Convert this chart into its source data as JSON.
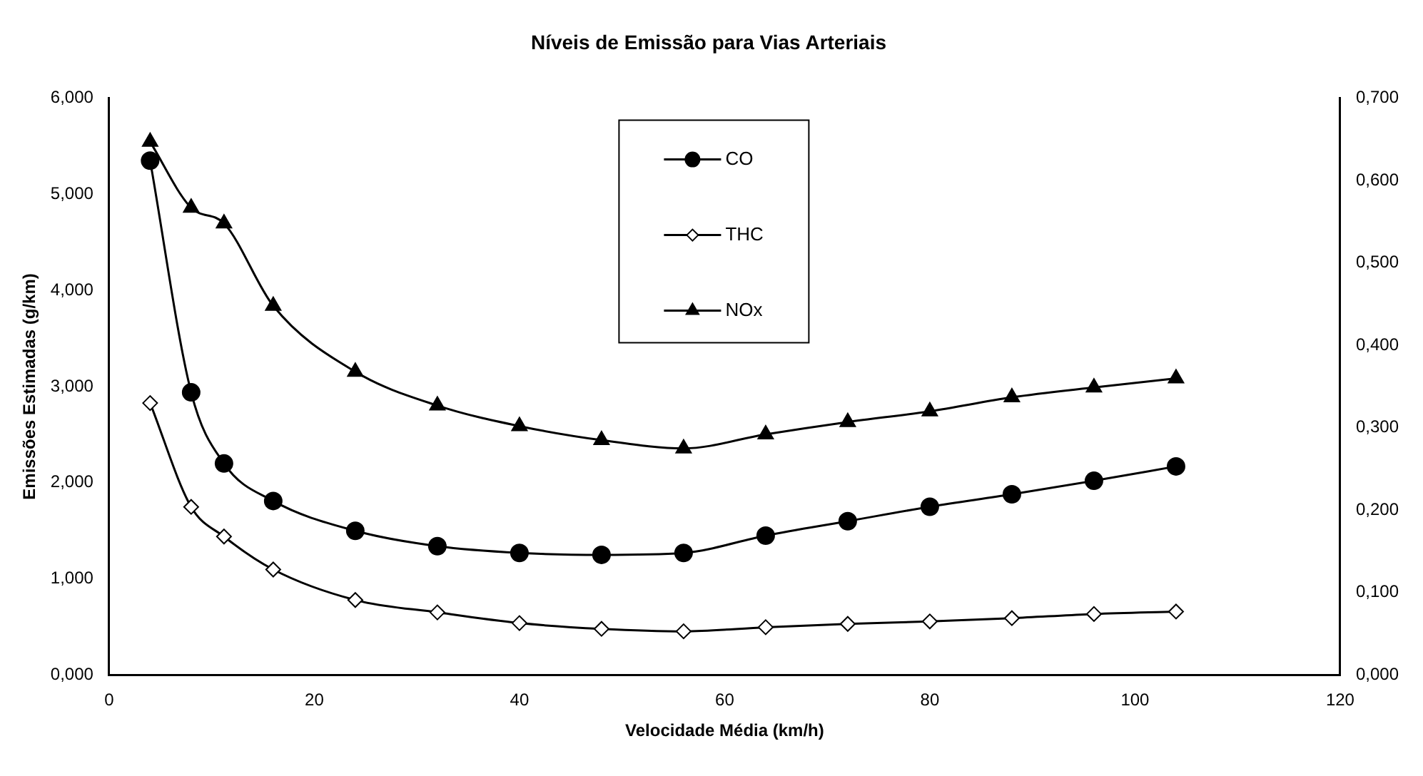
{
  "chart_data": {
    "type": "line",
    "title": "Níveis de Emissão para Vias Arteriais",
    "xlabel": "Velocidade Média (km/h)",
    "ylabel": "Emissões Estimadas (g/km)",
    "x": [
      4,
      8,
      11.2,
      16,
      24,
      32,
      40,
      48,
      56,
      64,
      72,
      80,
      88,
      96,
      104
    ],
    "xlim": [
      0,
      120
    ],
    "xticks": [
      0,
      20,
      40,
      60,
      80,
      100,
      120
    ],
    "ylim": [
      0,
      6
    ],
    "yticks": [
      {
        "value": 0,
        "label": "0,000"
      },
      {
        "value": 1,
        "label": "1,000"
      },
      {
        "value": 2,
        "label": "2,000"
      },
      {
        "value": 3,
        "label": "3,000"
      },
      {
        "value": 4,
        "label": "4,000"
      },
      {
        "value": 5,
        "label": "5,000"
      },
      {
        "value": 6,
        "label": "6,000"
      }
    ],
    "y2lim": [
      0,
      0.7
    ],
    "y2ticks": [
      {
        "value": 0,
        "label": "0,000"
      },
      {
        "value": 0.1,
        "label": "0,100"
      },
      {
        "value": 0.2,
        "label": "0,200"
      },
      {
        "value": 0.3,
        "label": "0,300"
      },
      {
        "value": 0.4,
        "label": "0,400"
      },
      {
        "value": 0.5,
        "label": "0,500"
      },
      {
        "value": 0.6,
        "label": "0,600"
      },
      {
        "value": 0.7,
        "label": "0,700"
      }
    ],
    "grid": false,
    "legend": "top",
    "series": [
      {
        "name": "CO",
        "color": "#000000",
        "marker": "circle",
        "values": [
          5.35,
          2.94,
          2.2,
          1.81,
          1.5,
          1.34,
          1.27,
          1.25,
          1.27,
          1.45,
          1.6,
          1.75,
          1.88,
          2.02,
          2.17
        ]
      },
      {
        "name": "THC",
        "color": "#000000",
        "marker": "diamond",
        "axis": "y2",
        "values": [
          0.33,
          0.204,
          0.168,
          0.128,
          0.091,
          0.076,
          0.063,
          0.056,
          0.053,
          0.058,
          0.062,
          0.065,
          0.069,
          0.074,
          0.077
        ]
      },
      {
        "name": "NOx",
        "color": "#000000",
        "marker": "triangle",
        "axis": "y2",
        "values": [
          0.647,
          0.567,
          0.548,
          0.448,
          0.368,
          0.327,
          0.302,
          0.285,
          0.275,
          0.292,
          0.307,
          0.32,
          0.337,
          0.349,
          0.36
        ]
      }
    ]
  }
}
